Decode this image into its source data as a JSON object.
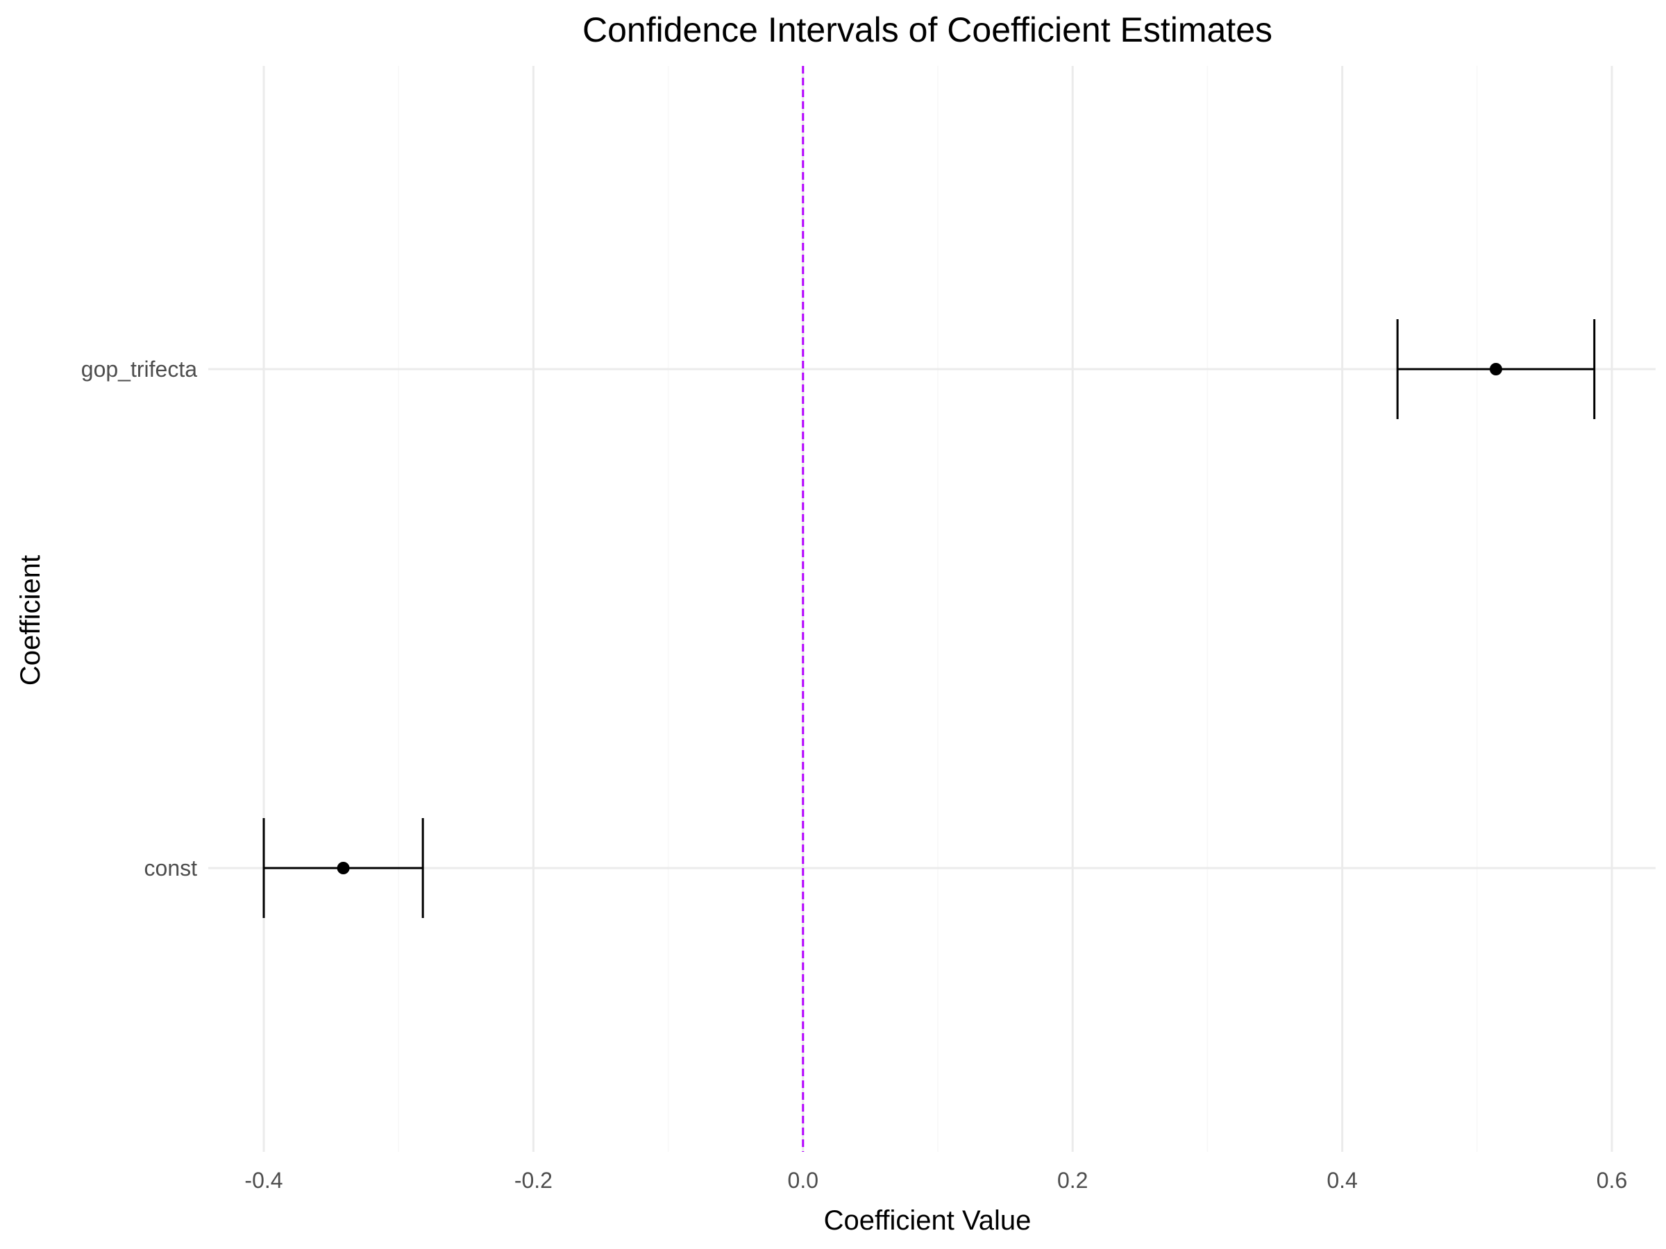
{
  "chart_data": {
    "type": "errorbar",
    "title": "Confidence Intervals of Coefficient Estimates",
    "xlabel": "Coefficient Value",
    "ylabel": "Coefficient",
    "xlim": [
      -0.4,
      0.6
    ],
    "x_ticks": [
      -0.4,
      -0.2,
      0.0,
      0.2,
      0.4,
      0.6
    ],
    "x_tick_labels": [
      "-0.4",
      "-0.2",
      "0.0",
      "0.2",
      "0.4",
      "0.6"
    ],
    "x_minor_ticks": [
      -0.3,
      -0.1,
      0.1,
      0.3,
      0.5
    ],
    "categories": [
      "const",
      "gop_trifecta"
    ],
    "estimates": [
      -0.341,
      0.514
    ],
    "ci_lower": [
      -0.4,
      0.441
    ],
    "ci_upper": [
      -0.282,
      0.587
    ],
    "reference_line": {
      "x": 0.0,
      "style": "dashed",
      "color": "#b300ff"
    },
    "grid": true,
    "legend": "none",
    "colors": {
      "points": "#000000",
      "errorbars": "#000000",
      "grid": "#ebebeb"
    }
  }
}
